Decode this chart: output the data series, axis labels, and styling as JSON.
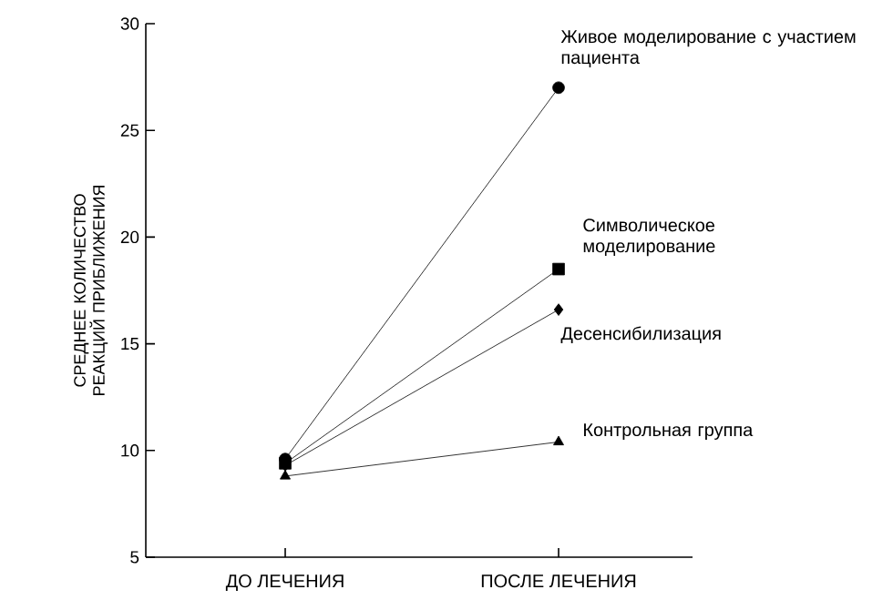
{
  "chart_data": {
    "type": "line",
    "ylabel": "СРЕДНЕЕ КОЛИЧЕСТВО РЕАКЦИЙ ПРИБЛИЖЕНИЯ",
    "categories": [
      "ДО ЛЕЧЕНИЯ",
      "ПОСЛЕ ЛЕЧЕНИЯ"
    ],
    "ylim": [
      5,
      30
    ],
    "yticks": [
      5,
      10,
      15,
      20,
      25,
      30
    ],
    "grid": false,
    "line_style": "solid",
    "series": [
      {
        "name": "Живое моделирование с участием пациента",
        "color": "#000000",
        "marker": "circle",
        "values": [
          9.6,
          27
        ]
      },
      {
        "name": "Символическое моделирование",
        "color": "#000000",
        "marker": "square",
        "values": [
          9.4,
          18.5
        ]
      },
      {
        "name": "Десенсибилизация",
        "color": "#000000",
        "marker": "diamond",
        "values": [
          9.3,
          16.6
        ]
      },
      {
        "name": "Контрольная группа",
        "color": "#000000",
        "marker": "triangle",
        "values": [
          8.8,
          10.4
        ]
      }
    ]
  }
}
